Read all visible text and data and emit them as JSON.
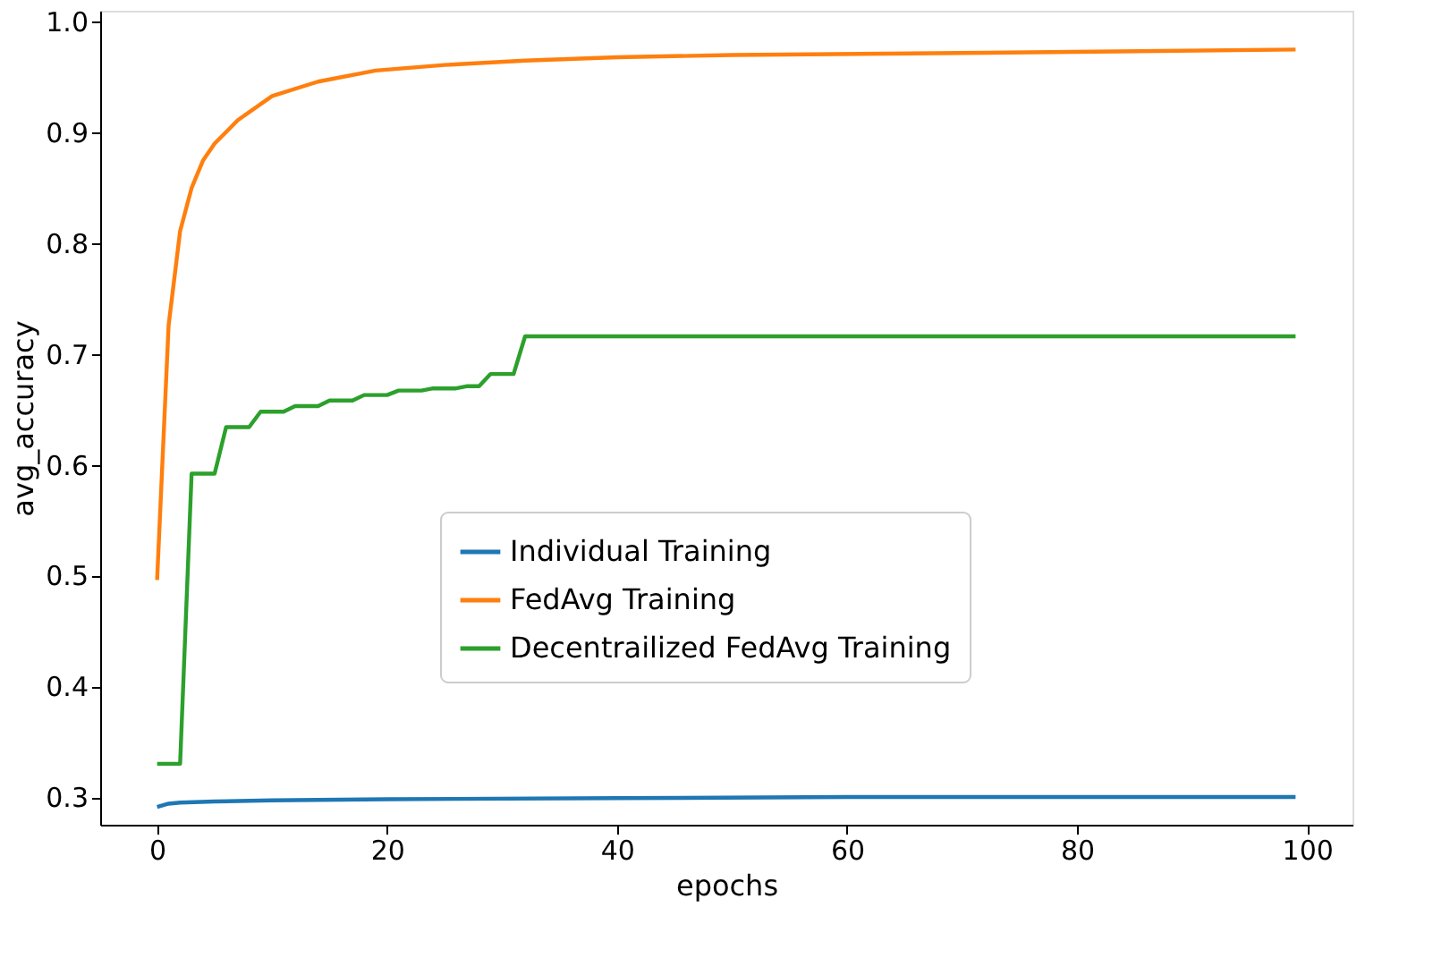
{
  "chart_data": {
    "type": "line",
    "xlabel": "epochs",
    "ylabel": "avg_accuracy",
    "xlim": [
      -4.95,
      103.95
    ],
    "ylim": [
      0.275,
      1.01
    ],
    "xticks": [
      0,
      20,
      40,
      60,
      80,
      100
    ],
    "yticks": [
      0.3,
      0.4,
      0.5,
      0.6,
      0.7,
      0.8,
      0.9,
      {
        "value": 1.0,
        "label": "1.0"
      }
    ],
    "grid": false,
    "legend": "center",
    "line_style": "solid",
    "marker": "none",
    "series": [
      {
        "name": "Individual Training",
        "color": "#1f77b4",
        "x": [
          0,
          1,
          2,
          5,
          10,
          20,
          40,
          60,
          99
        ],
        "values": [
          0.291,
          0.294,
          0.295,
          0.296,
          0.297,
          0.298,
          0.299,
          0.3,
          0.3
        ]
      },
      {
        "name": "FedAvg Training",
        "color": "#ff7f0e",
        "x": [
          0,
          1,
          2,
          3,
          4,
          5,
          7,
          10,
          14,
          19,
          25,
          32,
          40,
          50,
          72,
          99
        ],
        "values": [
          0.496,
          0.726,
          0.811,
          0.85,
          0.875,
          0.89,
          0.911,
          0.933,
          0.946,
          0.956,
          0.961,
          0.965,
          0.968,
          0.97,
          0.972,
          0.975
        ]
      },
      {
        "name": "Decentrailized FedAvg Training",
        "color": "#2ca02c",
        "x": [
          0,
          2,
          3,
          5,
          6,
          8,
          9,
          11,
          12,
          14,
          15,
          17,
          18,
          20,
          21,
          23,
          24,
          26,
          27,
          28,
          29,
          31,
          32,
          99
        ],
        "values": [
          0.33,
          0.33,
          0.592,
          0.592,
          0.634,
          0.634,
          0.648,
          0.648,
          0.653,
          0.653,
          0.658,
          0.658,
          0.663,
          0.663,
          0.667,
          0.667,
          0.669,
          0.669,
          0.671,
          0.671,
          0.682,
          0.682,
          0.716,
          0.716
        ]
      }
    ]
  }
}
